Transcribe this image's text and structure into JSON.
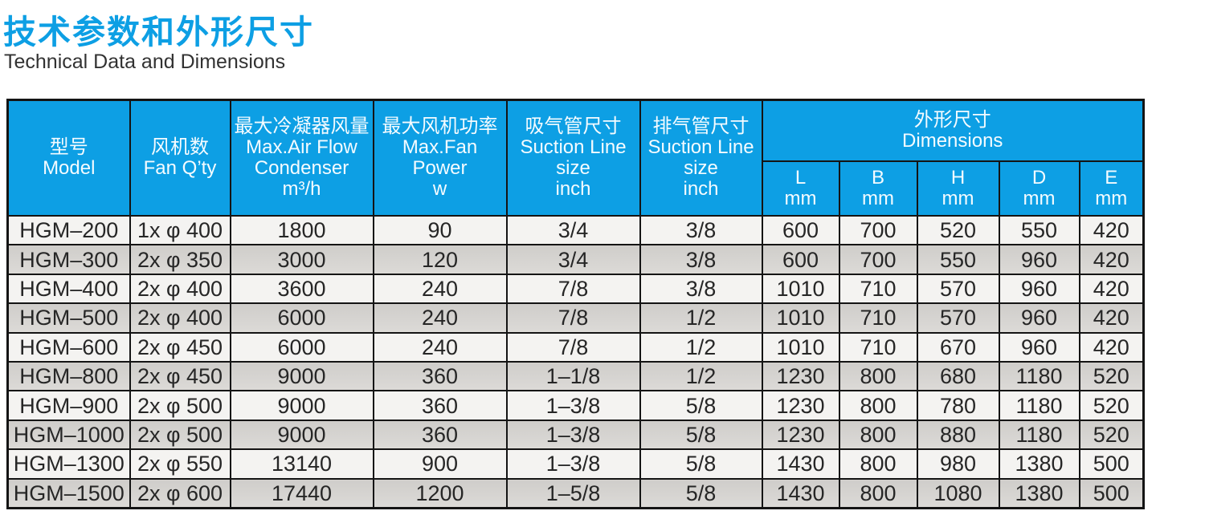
{
  "page": {
    "title_zh": "技术参数和外形尺寸",
    "title_en": "Technical Data and Dimensions"
  },
  "colors": {
    "accent_blue": "#0d9fe4",
    "header_text": "#f4fbff",
    "row_light": "#f4f3f1",
    "row_dark": "#d4d2cf",
    "border_black": "#141414",
    "data_text": "#262626"
  },
  "table": {
    "headers": {
      "model": {
        "zh": "型号",
        "en": "Model"
      },
      "fan_qty": {
        "zh": "风机数",
        "en": "Fan Q’ty"
      },
      "air_flow": {
        "zh": "最大冷凝器风量",
        "en1": "Max.Air Flow",
        "en2": "Condenser",
        "unit": "m³/h"
      },
      "fan_power": {
        "zh": "最大风机功率",
        "en1": "Max.Fan",
        "en2": "Power",
        "unit": "w"
      },
      "suction": {
        "zh": "吸气管尺寸",
        "en1": "Suction Line",
        "en2": "size",
        "unit": "inch"
      },
      "discharge": {
        "zh": "排气管尺寸",
        "en1": "Suction Line",
        "en2": "size",
        "unit": "inch"
      },
      "dimensions": {
        "zh": "外形尺寸",
        "en": "Dimensions"
      },
      "dims": [
        {
          "letter": "L",
          "unit": "mm"
        },
        {
          "letter": "B",
          "unit": "mm"
        },
        {
          "letter": "H",
          "unit": "mm"
        },
        {
          "letter": "D",
          "unit": "mm"
        },
        {
          "letter": "E",
          "unit": "mm"
        }
      ]
    },
    "column_keys": [
      "model",
      "fan_qty",
      "max_air_flow",
      "max_fan_power",
      "suction_line_size",
      "discharge_line_size",
      "dim_l",
      "dim_b",
      "dim_h",
      "dim_d",
      "dim_e"
    ],
    "rows": [
      [
        "HGM–200",
        "1x φ 400",
        "1800",
        "90",
        "3/4",
        "3/8",
        "600",
        "700",
        "520",
        "550",
        "420"
      ],
      [
        "HGM–300",
        "2x φ 350",
        "3000",
        "120",
        "3/4",
        "3/8",
        "600",
        "700",
        "550",
        "960",
        "420"
      ],
      [
        "HGM–400",
        "2x φ 400",
        "3600",
        "240",
        "7/8",
        "3/8",
        "1010",
        "710",
        "570",
        "960",
        "420"
      ],
      [
        "HGM–500",
        "2x φ 400",
        "6000",
        "240",
        "7/8",
        "1/2",
        "1010",
        "710",
        "570",
        "960",
        "420"
      ],
      [
        "HGM–600",
        "2x φ 450",
        "6000",
        "240",
        "7/8",
        "1/2",
        "1010",
        "710",
        "670",
        "960",
        "420"
      ],
      [
        "HGM–800",
        "2x φ 450",
        "9000",
        "360",
        "1–1/8",
        "1/2",
        "1230",
        "800",
        "680",
        "1180",
        "520"
      ],
      [
        "HGM–900",
        "2x φ 500",
        "9000",
        "360",
        "1–3/8",
        "5/8",
        "1230",
        "800",
        "780",
        "1180",
        "520"
      ],
      [
        "HGM–1000",
        "2x φ 500",
        "9000",
        "360",
        "1–3/8",
        "5/8",
        "1230",
        "800",
        "880",
        "1180",
        "520"
      ],
      [
        "HGM–1300",
        "2x φ 550",
        "13140",
        "900",
        "1–3/8",
        "5/8",
        "1430",
        "800",
        "980",
        "1380",
        "500"
      ],
      [
        "HGM–1500",
        "2x φ 600",
        "17440",
        "1200",
        "1–5/8",
        "5/8",
        "1430",
        "800",
        "1080",
        "1380",
        "500"
      ]
    ]
  }
}
